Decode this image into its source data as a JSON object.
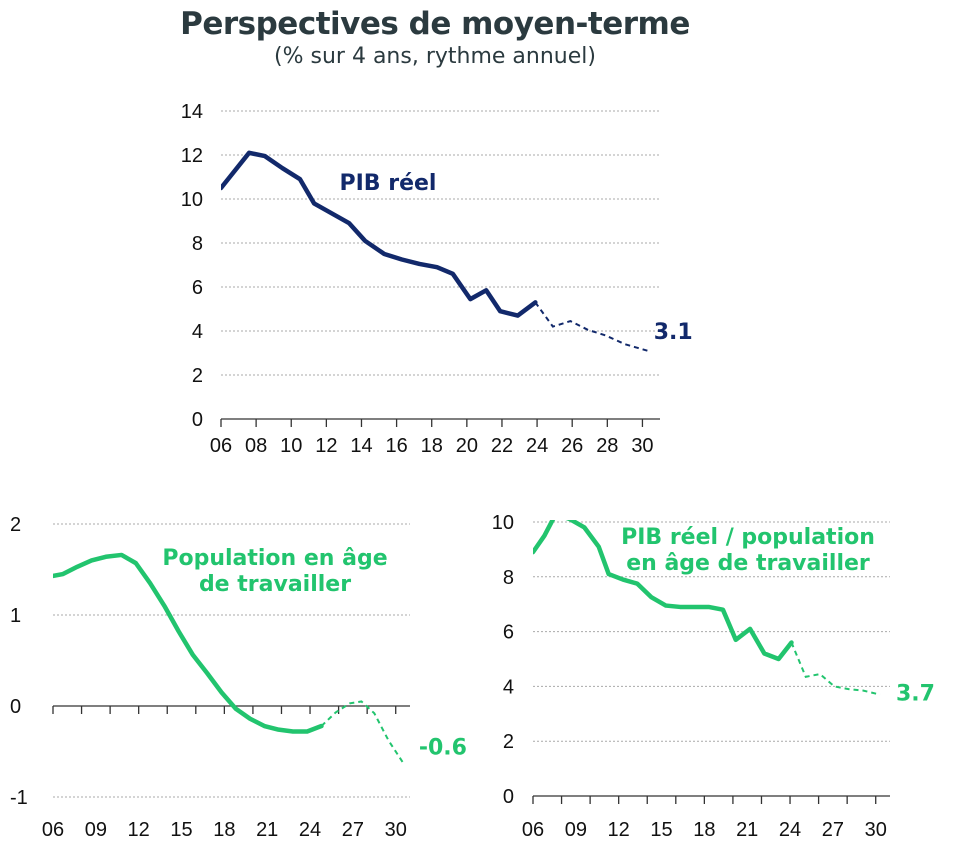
{
  "header": {
    "title": "Perspectives de moyen-terme",
    "subtitle": "(% sur 4 ans, rythme annuel)"
  },
  "colors": {
    "navy": "#12296b",
    "green": "#22c46e",
    "tick": "#111111"
  },
  "chart_data": [
    {
      "type": "line",
      "title": "",
      "xlabel": "",
      "ylabel": "",
      "xlim": [
        2006,
        2031
      ],
      "ylim": [
        0,
        14
      ],
      "yticks": [
        0,
        2,
        4,
        6,
        8,
        10,
        12,
        14
      ],
      "xticks": [
        2006,
        2008,
        2010,
        2012,
        2014,
        2016,
        2018,
        2020,
        2022,
        2024,
        2026,
        2028,
        2030
      ],
      "xtick_labels": [
        "06",
        "08",
        "10",
        "12",
        "14",
        "16",
        "18",
        "20",
        "22",
        "24",
        "26",
        "28",
        "30"
      ],
      "ytick_labels": [
        "0",
        "2",
        "4",
        "6",
        "8",
        "10",
        "12",
        "14"
      ],
      "grid": true,
      "series": [
        {
          "name": "PIB réel",
          "color": "#12296b",
          "actual": [
            [
              2006,
              10.5
            ],
            [
              2006.5,
              11.0
            ],
            [
              2007.6,
              12.1
            ],
            [
              2008.5,
              11.95
            ],
            [
              2009.5,
              11.4
            ],
            [
              2010.5,
              10.9
            ],
            [
              2011.3,
              9.8
            ],
            [
              2012.3,
              9.35
            ],
            [
              2013.3,
              8.9
            ],
            [
              2014.2,
              8.1
            ],
            [
              2015.3,
              7.5
            ],
            [
              2016.3,
              7.25
            ],
            [
              2017.3,
              7.05
            ],
            [
              2018.3,
              6.9
            ],
            [
              2019.2,
              6.6
            ],
            [
              2020.2,
              5.45
            ],
            [
              2021.1,
              5.85
            ],
            [
              2021.9,
              4.9
            ],
            [
              2022.9,
              4.7
            ],
            [
              2023.9,
              5.3
            ]
          ],
          "forecast": [
            [
              2023.9,
              5.3
            ],
            [
              2024.9,
              4.2
            ],
            [
              2025.9,
              4.45
            ],
            [
              2026.9,
              4.05
            ],
            [
              2027.9,
              3.8
            ],
            [
              2029.0,
              3.4
            ],
            [
              2030.3,
              3.1
            ]
          ],
          "end_label": "3.1"
        }
      ]
    },
    {
      "type": "line",
      "title": "",
      "xlabel": "",
      "ylabel": "",
      "xlim": [
        2006,
        2031
      ],
      "ylim": [
        -1,
        2
      ],
      "yticks": [
        -1,
        0,
        1,
        2
      ],
      "xticks": [
        2006,
        2009,
        2012,
        2015,
        2018,
        2021,
        2024,
        2027,
        2030
      ],
      "xtick_labels": [
        "06",
        "09",
        "12",
        "15",
        "18",
        "21",
        "24",
        "27",
        "30"
      ],
      "ytick_labels": [
        "-1",
        "0",
        "1",
        "2"
      ],
      "x_minor_ticks": [
        2006,
        2008,
        2010,
        2012,
        2014,
        2016,
        2018,
        2020,
        2022,
        2024,
        2026,
        2028,
        2030
      ],
      "grid": true,
      "series": [
        {
          "name": "Population en âge de travailler",
          "color": "#22c46e",
          "actual": [
            [
              2006,
              1.43
            ],
            [
              2006.7,
              1.45
            ],
            [
              2007.7,
              1.53
            ],
            [
              2008.7,
              1.6
            ],
            [
              2009.7,
              1.64
            ],
            [
              2010.8,
              1.66
            ],
            [
              2011.8,
              1.57
            ],
            [
              2012.8,
              1.35
            ],
            [
              2013.8,
              1.1
            ],
            [
              2014.8,
              0.82
            ],
            [
              2015.8,
              0.56
            ],
            [
              2016.8,
              0.36
            ],
            [
              2017.8,
              0.15
            ],
            [
              2018.8,
              -0.03
            ],
            [
              2019.8,
              -0.14
            ],
            [
              2020.8,
              -0.22
            ],
            [
              2021.8,
              -0.26
            ],
            [
              2022.8,
              -0.28
            ],
            [
              2023.8,
              -0.28
            ],
            [
              2024.8,
              -0.22
            ]
          ],
          "forecast": [
            [
              2024.8,
              -0.22
            ],
            [
              2025.8,
              -0.07
            ],
            [
              2026.8,
              0.03
            ],
            [
              2027.6,
              0.05
            ],
            [
              2028.5,
              -0.08
            ],
            [
              2029.5,
              -0.38
            ],
            [
              2030.5,
              -0.62
            ]
          ],
          "end_label": "-0.6"
        }
      ]
    },
    {
      "type": "line",
      "title": "",
      "xlabel": "",
      "ylabel": "",
      "xlim": [
        2006,
        2031
      ],
      "ylim": [
        0,
        10
      ],
      "yticks": [
        0,
        2,
        4,
        6,
        8,
        10
      ],
      "xticks": [
        2006,
        2009,
        2012,
        2015,
        2018,
        2021,
        2024,
        2027,
        2030
      ],
      "xtick_labels": [
        "06",
        "09",
        "12",
        "15",
        "18",
        "21",
        "24",
        "27",
        "30"
      ],
      "ytick_labels": [
        "0",
        "2",
        "4",
        "6",
        "8",
        "10"
      ],
      "x_minor_ticks": [
        2006,
        2008,
        2010,
        2012,
        2014,
        2016,
        2018,
        2020,
        2022,
        2024,
        2026,
        2028,
        2030
      ],
      "grid": true,
      "series": [
        {
          "name": "PIB réel / population en âge de travailler",
          "name_lines": [
            "PIB réel / population",
            "en âge de travailler"
          ],
          "color": "#22c46e",
          "actual": [
            [
              2006,
              8.9
            ],
            [
              2006.8,
              9.5
            ],
            [
              2007.6,
              10.3
            ],
            [
              2008.6,
              10.1
            ],
            [
              2009.6,
              9.8
            ],
            [
              2010.6,
              9.1
            ],
            [
              2011.3,
              8.1
            ],
            [
              2012.3,
              7.9
            ],
            [
              2013.3,
              7.75
            ],
            [
              2014.3,
              7.25
            ],
            [
              2015.3,
              6.95
            ],
            [
              2016.3,
              6.9
            ],
            [
              2017.3,
              6.9
            ],
            [
              2018.3,
              6.9
            ],
            [
              2019.3,
              6.8
            ],
            [
              2020.2,
              5.7
            ],
            [
              2021.2,
              6.1
            ],
            [
              2022.2,
              5.2
            ],
            [
              2023.2,
              5.0
            ],
            [
              2024.1,
              5.6
            ]
          ],
          "forecast": [
            [
              2024.1,
              5.6
            ],
            [
              2025.1,
              4.35
            ],
            [
              2026.1,
              4.45
            ],
            [
              2027.1,
              4.0
            ],
            [
              2028.1,
              3.9
            ],
            [
              2029.1,
              3.85
            ],
            [
              2030.3,
              3.7
            ]
          ],
          "end_label": "3.7"
        }
      ]
    }
  ]
}
